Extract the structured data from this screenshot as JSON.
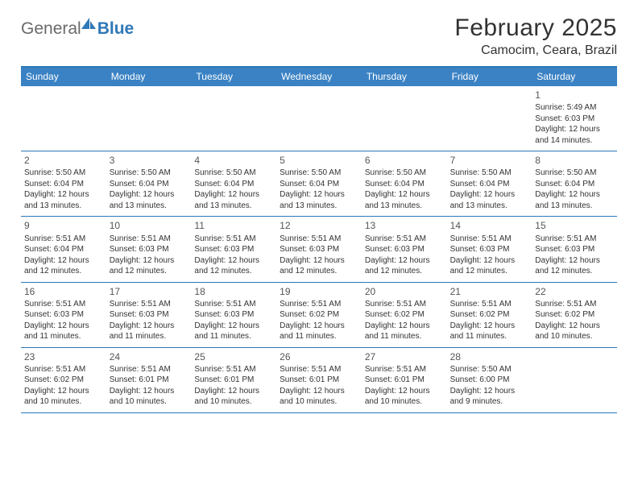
{
  "brand": {
    "text_general": "General",
    "text_blue": "Blue",
    "logo_fill": "#2f78b7"
  },
  "title": {
    "month": "February 2025",
    "location": "Camocim, Ceara, Brazil"
  },
  "colors": {
    "header_bar": "#3a82c4",
    "rule": "#2f78b7",
    "text": "#333333",
    "background": "#ffffff"
  },
  "weekdays": [
    "Sunday",
    "Monday",
    "Tuesday",
    "Wednesday",
    "Thursday",
    "Friday",
    "Saturday"
  ],
  "weeks": [
    [
      null,
      null,
      null,
      null,
      null,
      null,
      {
        "n": "1",
        "sunrise": "Sunrise: 5:49 AM",
        "sunset": "Sunset: 6:03 PM",
        "daylight1": "Daylight: 12 hours",
        "daylight2": "and 14 minutes."
      }
    ],
    [
      {
        "n": "2",
        "sunrise": "Sunrise: 5:50 AM",
        "sunset": "Sunset: 6:04 PM",
        "daylight1": "Daylight: 12 hours",
        "daylight2": "and 13 minutes."
      },
      {
        "n": "3",
        "sunrise": "Sunrise: 5:50 AM",
        "sunset": "Sunset: 6:04 PM",
        "daylight1": "Daylight: 12 hours",
        "daylight2": "and 13 minutes."
      },
      {
        "n": "4",
        "sunrise": "Sunrise: 5:50 AM",
        "sunset": "Sunset: 6:04 PM",
        "daylight1": "Daylight: 12 hours",
        "daylight2": "and 13 minutes."
      },
      {
        "n": "5",
        "sunrise": "Sunrise: 5:50 AM",
        "sunset": "Sunset: 6:04 PM",
        "daylight1": "Daylight: 12 hours",
        "daylight2": "and 13 minutes."
      },
      {
        "n": "6",
        "sunrise": "Sunrise: 5:50 AM",
        "sunset": "Sunset: 6:04 PM",
        "daylight1": "Daylight: 12 hours",
        "daylight2": "and 13 minutes."
      },
      {
        "n": "7",
        "sunrise": "Sunrise: 5:50 AM",
        "sunset": "Sunset: 6:04 PM",
        "daylight1": "Daylight: 12 hours",
        "daylight2": "and 13 minutes."
      },
      {
        "n": "8",
        "sunrise": "Sunrise: 5:50 AM",
        "sunset": "Sunset: 6:04 PM",
        "daylight1": "Daylight: 12 hours",
        "daylight2": "and 13 minutes."
      }
    ],
    [
      {
        "n": "9",
        "sunrise": "Sunrise: 5:51 AM",
        "sunset": "Sunset: 6:04 PM",
        "daylight1": "Daylight: 12 hours",
        "daylight2": "and 12 minutes."
      },
      {
        "n": "10",
        "sunrise": "Sunrise: 5:51 AM",
        "sunset": "Sunset: 6:03 PM",
        "daylight1": "Daylight: 12 hours",
        "daylight2": "and 12 minutes."
      },
      {
        "n": "11",
        "sunrise": "Sunrise: 5:51 AM",
        "sunset": "Sunset: 6:03 PM",
        "daylight1": "Daylight: 12 hours",
        "daylight2": "and 12 minutes."
      },
      {
        "n": "12",
        "sunrise": "Sunrise: 5:51 AM",
        "sunset": "Sunset: 6:03 PM",
        "daylight1": "Daylight: 12 hours",
        "daylight2": "and 12 minutes."
      },
      {
        "n": "13",
        "sunrise": "Sunrise: 5:51 AM",
        "sunset": "Sunset: 6:03 PM",
        "daylight1": "Daylight: 12 hours",
        "daylight2": "and 12 minutes."
      },
      {
        "n": "14",
        "sunrise": "Sunrise: 5:51 AM",
        "sunset": "Sunset: 6:03 PM",
        "daylight1": "Daylight: 12 hours",
        "daylight2": "and 12 minutes."
      },
      {
        "n": "15",
        "sunrise": "Sunrise: 5:51 AM",
        "sunset": "Sunset: 6:03 PM",
        "daylight1": "Daylight: 12 hours",
        "daylight2": "and 12 minutes."
      }
    ],
    [
      {
        "n": "16",
        "sunrise": "Sunrise: 5:51 AM",
        "sunset": "Sunset: 6:03 PM",
        "daylight1": "Daylight: 12 hours",
        "daylight2": "and 11 minutes."
      },
      {
        "n": "17",
        "sunrise": "Sunrise: 5:51 AM",
        "sunset": "Sunset: 6:03 PM",
        "daylight1": "Daylight: 12 hours",
        "daylight2": "and 11 minutes."
      },
      {
        "n": "18",
        "sunrise": "Sunrise: 5:51 AM",
        "sunset": "Sunset: 6:03 PM",
        "daylight1": "Daylight: 12 hours",
        "daylight2": "and 11 minutes."
      },
      {
        "n": "19",
        "sunrise": "Sunrise: 5:51 AM",
        "sunset": "Sunset: 6:02 PM",
        "daylight1": "Daylight: 12 hours",
        "daylight2": "and 11 minutes."
      },
      {
        "n": "20",
        "sunrise": "Sunrise: 5:51 AM",
        "sunset": "Sunset: 6:02 PM",
        "daylight1": "Daylight: 12 hours",
        "daylight2": "and 11 minutes."
      },
      {
        "n": "21",
        "sunrise": "Sunrise: 5:51 AM",
        "sunset": "Sunset: 6:02 PM",
        "daylight1": "Daylight: 12 hours",
        "daylight2": "and 11 minutes."
      },
      {
        "n": "22",
        "sunrise": "Sunrise: 5:51 AM",
        "sunset": "Sunset: 6:02 PM",
        "daylight1": "Daylight: 12 hours",
        "daylight2": "and 10 minutes."
      }
    ],
    [
      {
        "n": "23",
        "sunrise": "Sunrise: 5:51 AM",
        "sunset": "Sunset: 6:02 PM",
        "daylight1": "Daylight: 12 hours",
        "daylight2": "and 10 minutes."
      },
      {
        "n": "24",
        "sunrise": "Sunrise: 5:51 AM",
        "sunset": "Sunset: 6:01 PM",
        "daylight1": "Daylight: 12 hours",
        "daylight2": "and 10 minutes."
      },
      {
        "n": "25",
        "sunrise": "Sunrise: 5:51 AM",
        "sunset": "Sunset: 6:01 PM",
        "daylight1": "Daylight: 12 hours",
        "daylight2": "and 10 minutes."
      },
      {
        "n": "26",
        "sunrise": "Sunrise: 5:51 AM",
        "sunset": "Sunset: 6:01 PM",
        "daylight1": "Daylight: 12 hours",
        "daylight2": "and 10 minutes."
      },
      {
        "n": "27",
        "sunrise": "Sunrise: 5:51 AM",
        "sunset": "Sunset: 6:01 PM",
        "daylight1": "Daylight: 12 hours",
        "daylight2": "and 10 minutes."
      },
      {
        "n": "28",
        "sunrise": "Sunrise: 5:50 AM",
        "sunset": "Sunset: 6:00 PM",
        "daylight1": "Daylight: 12 hours",
        "daylight2": "and 9 minutes."
      },
      null
    ]
  ]
}
